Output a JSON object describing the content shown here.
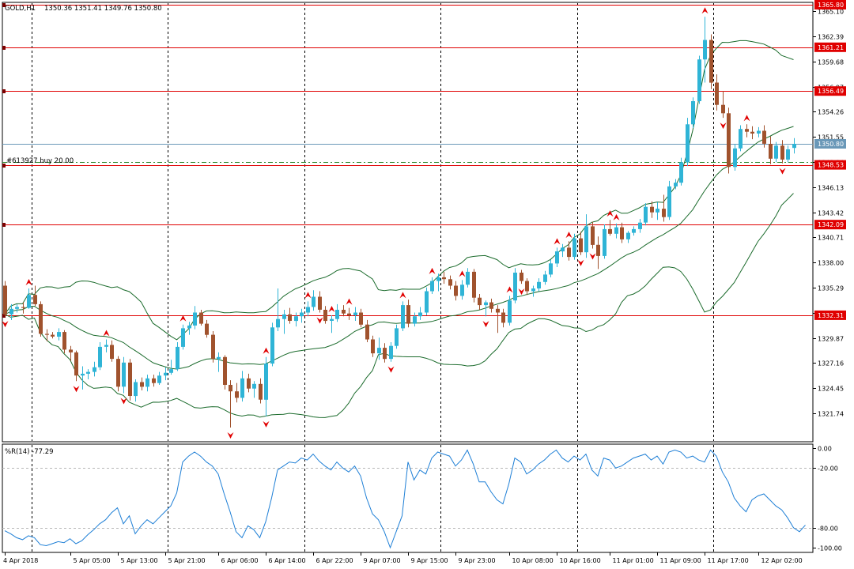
{
  "chart_title": "GOLD,H1",
  "ohlc_header": "1350.36 1351.41 1349.76 1350.80",
  "position_label": "#613927 buy 20.00",
  "indicator_label": "%R(14) -77.29",
  "colors": {
    "bull": "#2fb4d6",
    "bear": "#a0522d",
    "level_line": "#e00000",
    "band": "#1b6b2c",
    "bid_line": "#6a98b8",
    "wpr_line": "#1e7fd6",
    "fractal": "#e00000"
  },
  "price_axis": {
    "min": 1319.6,
    "max": 1365.8,
    "ticks": [
      {
        "label": "1365.10",
        "value": 1365.1
      },
      {
        "label": "1362.39",
        "value": 1362.39
      },
      {
        "label": "1359.68",
        "value": 1359.68
      },
      {
        "label": "1356.97",
        "value": 1356.97
      },
      {
        "label": "1354.26",
        "value": 1354.26
      },
      {
        "label": "1351.55",
        "value": 1351.55
      },
      {
        "label": "1348.84",
        "value": 1348.84
      },
      {
        "label": "1346.13",
        "value": 1346.13
      },
      {
        "label": "1343.42",
        "value": 1343.42
      },
      {
        "label": "1340.71",
        "value": 1340.71
      },
      {
        "label": "1338.00",
        "value": 1338.0
      },
      {
        "label": "1335.29",
        "value": 1335.29
      },
      {
        "label": "1332.58",
        "value": 1332.58
      },
      {
        "label": "1329.87",
        "value": 1329.87
      },
      {
        "label": "1327.16",
        "value": 1327.16
      },
      {
        "label": "1324.45",
        "value": 1324.45
      },
      {
        "label": "1321.74",
        "value": 1321.74
      }
    ]
  },
  "horizontal_levels": [
    {
      "label": "1365.80",
      "value": 1365.8
    },
    {
      "label": "1361.21",
      "value": 1361.21
    },
    {
      "label": "1356.49",
      "value": 1356.49
    },
    {
      "label": "1348.53",
      "value": 1348.53
    },
    {
      "label": "1342.09",
      "value": 1342.09
    },
    {
      "label": "1332.31",
      "value": 1332.31
    }
  ],
  "bid": {
    "label": "1350.80",
    "value": 1350.8
  },
  "position_price": 1348.8,
  "wpr_axis": {
    "min": -100,
    "max": 0,
    "ticks": [
      {
        "label": "0.00",
        "value": 0
      },
      {
        "label": "-20.00",
        "value": -20
      },
      {
        "label": "-80.00",
        "value": -80
      },
      {
        "label": "-100.00",
        "value": -100
      }
    ]
  },
  "time_labels": [
    {
      "label": "4 Apr 2018",
      "bar": 0
    },
    {
      "label": "5 Apr 05:00",
      "bar": 11
    },
    {
      "label": "5 Apr 13:00",
      "bar": 19
    },
    {
      "label": "5 Apr 21:00",
      "bar": 27
    },
    {
      "label": "6 Apr 06:00",
      "bar": 36
    },
    {
      "label": "6 Apr 14:00",
      "bar": 44
    },
    {
      "label": "6 Apr 22:00",
      "bar": 52
    },
    {
      "label": "9 Apr 07:00",
      "bar": 60
    },
    {
      "label": "9 Apr 15:00",
      "bar": 68
    },
    {
      "label": "9 Apr 23:00",
      "bar": 76
    },
    {
      "label": "10 Apr 08:00",
      "bar": 85
    },
    {
      "label": "10 Apr 16:00",
      "bar": 93
    },
    {
      "label": "11 Apr 01:00",
      "bar": 102
    },
    {
      "label": "11 Apr 09:00",
      "bar": 110
    },
    {
      "label": "11 Apr 17:00",
      "bar": 118
    },
    {
      "label": "12 Apr 02:00",
      "bar": 127
    }
  ],
  "period_separators": [
    4.5,
    27.5,
    50.5,
    73.5,
    96.5,
    119.5
  ],
  "chart_data": {
    "type": "candlestick",
    "symbol": "GOLD",
    "timeframe": "H1",
    "bars": [
      {
        "o": 1335.5,
        "h": 1336.0,
        "l": 1332.2,
        "c": 1332.4
      },
      {
        "o": 1332.4,
        "h": 1333.5,
        "l": 1331.8,
        "c": 1333.0
      },
      {
        "o": 1333.0,
        "h": 1333.5,
        "l": 1332.6,
        "c": 1333.2
      },
      {
        "o": 1333.2,
        "h": 1333.7,
        "l": 1332.5,
        "c": 1333.1
      },
      {
        "o": 1333.1,
        "h": 1335.2,
        "l": 1333.0,
        "c": 1334.5
      },
      {
        "o": 1334.5,
        "h": 1335.5,
        "l": 1333.3,
        "c": 1333.5
      },
      {
        "o": 1333.5,
        "h": 1333.8,
        "l": 1330.0,
        "c": 1330.3
      },
      {
        "o": 1330.3,
        "h": 1330.8,
        "l": 1329.5,
        "c": 1330.2
      },
      {
        "o": 1330.2,
        "h": 1330.5,
        "l": 1329.8,
        "c": 1330.0
      },
      {
        "o": 1330.0,
        "h": 1330.9,
        "l": 1329.6,
        "c": 1330.5
      },
      {
        "o": 1330.5,
        "h": 1330.7,
        "l": 1328.2,
        "c": 1328.6
      },
      {
        "o": 1328.6,
        "h": 1329.0,
        "l": 1327.4,
        "c": 1328.3
      },
      {
        "o": 1328.3,
        "h": 1328.5,
        "l": 1325.2,
        "c": 1325.8
      },
      {
        "o": 1325.8,
        "h": 1326.8,
        "l": 1324.3,
        "c": 1326.0
      },
      {
        "o": 1326.0,
        "h": 1326.5,
        "l": 1325.4,
        "c": 1326.2
      },
      {
        "o": 1326.2,
        "h": 1327.3,
        "l": 1325.7,
        "c": 1326.7
      },
      {
        "o": 1326.7,
        "h": 1329.4,
        "l": 1326.4,
        "c": 1328.9
      },
      {
        "o": 1328.9,
        "h": 1329.7,
        "l": 1328.3,
        "c": 1329.1
      },
      {
        "o": 1329.1,
        "h": 1329.6,
        "l": 1327.3,
        "c": 1327.6
      },
      {
        "o": 1327.6,
        "h": 1327.9,
        "l": 1324.1,
        "c": 1324.6
      },
      {
        "o": 1324.6,
        "h": 1327.8,
        "l": 1323.9,
        "c": 1327.2
      },
      {
        "o": 1327.2,
        "h": 1327.6,
        "l": 1323.1,
        "c": 1323.6
      },
      {
        "o": 1323.6,
        "h": 1325.4,
        "l": 1323.0,
        "c": 1325.1
      },
      {
        "o": 1325.1,
        "h": 1325.6,
        "l": 1324.2,
        "c": 1324.6
      },
      {
        "o": 1324.6,
        "h": 1325.9,
        "l": 1324.1,
        "c": 1325.5
      },
      {
        "o": 1325.5,
        "h": 1325.9,
        "l": 1324.6,
        "c": 1325.0
      },
      {
        "o": 1325.0,
        "h": 1326.2,
        "l": 1324.8,
        "c": 1325.8
      },
      {
        "o": 1325.8,
        "h": 1326.7,
        "l": 1325.3,
        "c": 1326.1
      },
      {
        "o": 1326.1,
        "h": 1327.5,
        "l": 1325.9,
        "c": 1326.5
      },
      {
        "o": 1326.5,
        "h": 1329.4,
        "l": 1326.3,
        "c": 1328.9
      },
      {
        "o": 1328.9,
        "h": 1331.3,
        "l": 1328.6,
        "c": 1330.9
      },
      {
        "o": 1330.9,
        "h": 1331.6,
        "l": 1330.2,
        "c": 1331.2
      },
      {
        "o": 1331.2,
        "h": 1333.3,
        "l": 1330.8,
        "c": 1332.6
      },
      {
        "o": 1332.6,
        "h": 1332.9,
        "l": 1331.2,
        "c": 1331.4
      },
      {
        "o": 1331.4,
        "h": 1331.8,
        "l": 1329.9,
        "c": 1330.2
      },
      {
        "o": 1330.2,
        "h": 1330.6,
        "l": 1327.2,
        "c": 1327.6
      },
      {
        "o": 1327.6,
        "h": 1328.3,
        "l": 1326.2,
        "c": 1327.8
      },
      {
        "o": 1327.8,
        "h": 1328.0,
        "l": 1324.3,
        "c": 1324.8
      },
      {
        "o": 1324.8,
        "h": 1325.3,
        "l": 1320.2,
        "c": 1324.1
      },
      {
        "o": 1324.1,
        "h": 1325.0,
        "l": 1322.9,
        "c": 1323.4
      },
      {
        "o": 1323.4,
        "h": 1326.3,
        "l": 1323.0,
        "c": 1325.5
      },
      {
        "o": 1325.5,
        "h": 1326.0,
        "l": 1324.0,
        "c": 1324.4
      },
      {
        "o": 1324.4,
        "h": 1325.2,
        "l": 1323.4,
        "c": 1324.9
      },
      {
        "o": 1324.9,
        "h": 1325.5,
        "l": 1322.8,
        "c": 1323.2
      },
      {
        "o": 1323.2,
        "h": 1327.8,
        "l": 1321.4,
        "c": 1327.1
      },
      {
        "o": 1327.1,
        "h": 1331.5,
        "l": 1326.8,
        "c": 1331.0
      },
      {
        "o": 1331.0,
        "h": 1335.2,
        "l": 1330.6,
        "c": 1331.9
      },
      {
        "o": 1331.9,
        "h": 1332.9,
        "l": 1330.3,
        "c": 1332.4
      },
      {
        "o": 1332.4,
        "h": 1333.1,
        "l": 1331.4,
        "c": 1331.7
      },
      {
        "o": 1331.7,
        "h": 1332.6,
        "l": 1331.1,
        "c": 1332.2
      },
      {
        "o": 1332.2,
        "h": 1333.0,
        "l": 1331.5,
        "c": 1332.6
      },
      {
        "o": 1332.6,
        "h": 1333.8,
        "l": 1332.2,
        "c": 1333.2
      },
      {
        "o": 1333.2,
        "h": 1335.0,
        "l": 1332.8,
        "c": 1334.3
      },
      {
        "o": 1334.3,
        "h": 1334.9,
        "l": 1332.6,
        "c": 1332.9
      },
      {
        "o": 1332.9,
        "h": 1333.3,
        "l": 1331.4,
        "c": 1331.7
      },
      {
        "o": 1331.7,
        "h": 1332.3,
        "l": 1330.4,
        "c": 1331.9
      },
      {
        "o": 1331.9,
        "h": 1333.5,
        "l": 1331.6,
        "c": 1332.9
      },
      {
        "o": 1332.9,
        "h": 1333.4,
        "l": 1332.2,
        "c": 1332.5
      },
      {
        "o": 1332.5,
        "h": 1333.1,
        "l": 1331.8,
        "c": 1332.3
      },
      {
        "o": 1332.3,
        "h": 1333.2,
        "l": 1331.7,
        "c": 1332.6
      },
      {
        "o": 1332.6,
        "h": 1333.0,
        "l": 1331.0,
        "c": 1331.3
      },
      {
        "o": 1331.3,
        "h": 1331.8,
        "l": 1329.4,
        "c": 1329.7
      },
      {
        "o": 1329.7,
        "h": 1330.1,
        "l": 1327.8,
        "c": 1328.2
      },
      {
        "o": 1328.2,
        "h": 1329.9,
        "l": 1327.5,
        "c": 1328.8
      },
      {
        "o": 1328.8,
        "h": 1329.3,
        "l": 1327.2,
        "c": 1327.6
      },
      {
        "o": 1327.6,
        "h": 1329.4,
        "l": 1327.3,
        "c": 1329.0
      },
      {
        "o": 1329.0,
        "h": 1331.3,
        "l": 1328.7,
        "c": 1330.9
      },
      {
        "o": 1330.9,
        "h": 1333.8,
        "l": 1330.6,
        "c": 1333.4
      },
      {
        "o": 1333.4,
        "h": 1334.0,
        "l": 1331.0,
        "c": 1331.4
      },
      {
        "o": 1331.4,
        "h": 1332.6,
        "l": 1331.1,
        "c": 1332.2
      },
      {
        "o": 1332.2,
        "h": 1333.2,
        "l": 1331.8,
        "c": 1332.6
      },
      {
        "o": 1332.6,
        "h": 1335.3,
        "l": 1332.3,
        "c": 1334.9
      },
      {
        "o": 1334.9,
        "h": 1336.4,
        "l": 1334.6,
        "c": 1336.0
      },
      {
        "o": 1336.0,
        "h": 1336.8,
        "l": 1334.9,
        "c": 1336.4
      },
      {
        "o": 1336.4,
        "h": 1337.0,
        "l": 1335.7,
        "c": 1336.2
      },
      {
        "o": 1336.2,
        "h": 1336.6,
        "l": 1335.1,
        "c": 1335.5
      },
      {
        "o": 1335.5,
        "h": 1336.0,
        "l": 1333.9,
        "c": 1334.4
      },
      {
        "o": 1334.4,
        "h": 1336.1,
        "l": 1334.0,
        "c": 1335.6
      },
      {
        "o": 1335.6,
        "h": 1337.4,
        "l": 1335.3,
        "c": 1337.0
      },
      {
        "o": 1337.0,
        "h": 1337.3,
        "l": 1333.7,
        "c": 1334.2
      },
      {
        "o": 1334.2,
        "h": 1334.6,
        "l": 1332.9,
        "c": 1333.4
      },
      {
        "o": 1333.4,
        "h": 1333.9,
        "l": 1332.2,
        "c": 1333.7
      },
      {
        "o": 1333.7,
        "h": 1334.1,
        "l": 1332.6,
        "c": 1333.0
      },
      {
        "o": 1333.0,
        "h": 1333.4,
        "l": 1330.4,
        "c": 1332.6
      },
      {
        "o": 1332.6,
        "h": 1333.0,
        "l": 1331.0,
        "c": 1331.5
      },
      {
        "o": 1331.5,
        "h": 1334.4,
        "l": 1331.2,
        "c": 1333.9
      },
      {
        "o": 1333.9,
        "h": 1337.4,
        "l": 1333.6,
        "c": 1336.9
      },
      {
        "o": 1336.9,
        "h": 1337.2,
        "l": 1335.7,
        "c": 1336.0
      },
      {
        "o": 1336.0,
        "h": 1336.3,
        "l": 1334.5,
        "c": 1334.9
      },
      {
        "o": 1334.9,
        "h": 1335.5,
        "l": 1334.3,
        "c": 1335.2
      },
      {
        "o": 1335.2,
        "h": 1336.3,
        "l": 1334.9,
        "c": 1335.9
      },
      {
        "o": 1335.9,
        "h": 1337.1,
        "l": 1335.6,
        "c": 1336.7
      },
      {
        "o": 1336.7,
        "h": 1338.3,
        "l": 1336.4,
        "c": 1337.9
      },
      {
        "o": 1337.9,
        "h": 1339.6,
        "l": 1337.5,
        "c": 1339.2
      },
      {
        "o": 1339.2,
        "h": 1340.0,
        "l": 1338.6,
        "c": 1339.6
      },
      {
        "o": 1339.6,
        "h": 1340.3,
        "l": 1338.2,
        "c": 1338.6
      },
      {
        "o": 1338.6,
        "h": 1341.1,
        "l": 1338.3,
        "c": 1340.6
      },
      {
        "o": 1340.6,
        "h": 1341.3,
        "l": 1338.8,
        "c": 1339.1
      },
      {
        "o": 1339.1,
        "h": 1343.2,
        "l": 1338.5,
        "c": 1341.9
      },
      {
        "o": 1341.9,
        "h": 1342.4,
        "l": 1339.5,
        "c": 1339.9
      },
      {
        "o": 1339.9,
        "h": 1340.8,
        "l": 1337.3,
        "c": 1338.7
      },
      {
        "o": 1338.7,
        "h": 1342.1,
        "l": 1338.4,
        "c": 1341.6
      },
      {
        "o": 1341.6,
        "h": 1342.6,
        "l": 1340.9,
        "c": 1341.1
      },
      {
        "o": 1341.1,
        "h": 1342.2,
        "l": 1340.6,
        "c": 1341.8
      },
      {
        "o": 1341.8,
        "h": 1342.3,
        "l": 1340.1,
        "c": 1340.5
      },
      {
        "o": 1340.5,
        "h": 1341.4,
        "l": 1340.1,
        "c": 1341.2
      },
      {
        "o": 1341.2,
        "h": 1341.9,
        "l": 1340.9,
        "c": 1341.6
      },
      {
        "o": 1341.6,
        "h": 1342.7,
        "l": 1341.2,
        "c": 1342.3
      },
      {
        "o": 1342.3,
        "h": 1344.4,
        "l": 1342.0,
        "c": 1344.0
      },
      {
        "o": 1344.0,
        "h": 1344.6,
        "l": 1342.8,
        "c": 1343.4
      },
      {
        "o": 1343.4,
        "h": 1344.5,
        "l": 1342.6,
        "c": 1343.8
      },
      {
        "o": 1343.8,
        "h": 1345.3,
        "l": 1342.4,
        "c": 1342.9
      },
      {
        "o": 1342.9,
        "h": 1346.8,
        "l": 1342.6,
        "c": 1346.2
      },
      {
        "o": 1346.2,
        "h": 1347.0,
        "l": 1345.9,
        "c": 1346.6
      },
      {
        "o": 1346.6,
        "h": 1349.3,
        "l": 1346.3,
        "c": 1348.8
      },
      {
        "o": 1348.8,
        "h": 1353.6,
        "l": 1348.4,
        "c": 1352.9
      },
      {
        "o": 1352.9,
        "h": 1355.8,
        "l": 1352.5,
        "c": 1355.4
      },
      {
        "o": 1355.4,
        "h": 1360.3,
        "l": 1355.1,
        "c": 1359.9
      },
      {
        "o": 1359.9,
        "h": 1364.5,
        "l": 1357.4,
        "c": 1362.0
      },
      {
        "o": 1362.0,
        "h": 1362.6,
        "l": 1356.7,
        "c": 1357.4
      },
      {
        "o": 1357.4,
        "h": 1358.3,
        "l": 1354.4,
        "c": 1355.0
      },
      {
        "o": 1355.0,
        "h": 1356.5,
        "l": 1353.6,
        "c": 1354.1
      },
      {
        "o": 1354.1,
        "h": 1354.7,
        "l": 1347.6,
        "c": 1348.3
      },
      {
        "o": 1348.3,
        "h": 1350.8,
        "l": 1347.9,
        "c": 1350.3
      },
      {
        "o": 1350.3,
        "h": 1352.8,
        "l": 1350.0,
        "c": 1352.4
      },
      {
        "o": 1352.4,
        "h": 1352.9,
        "l": 1351.5,
        "c": 1352.1
      },
      {
        "o": 1352.1,
        "h": 1352.7,
        "l": 1351.3,
        "c": 1351.9
      },
      {
        "o": 1351.9,
        "h": 1352.6,
        "l": 1351.5,
        "c": 1352.2
      },
      {
        "o": 1352.2,
        "h": 1352.8,
        "l": 1350.4,
        "c": 1350.8
      },
      {
        "o": 1350.8,
        "h": 1351.6,
        "l": 1348.6,
        "c": 1349.2
      },
      {
        "o": 1349.2,
        "h": 1351.0,
        "l": 1348.8,
        "c": 1350.6
      },
      {
        "o": 1350.6,
        "h": 1351.2,
        "l": 1348.7,
        "c": 1349.1
      },
      {
        "o": 1349.1,
        "h": 1350.6,
        "l": 1348.8,
        "c": 1350.2
      },
      {
        "o": 1350.36,
        "h": 1351.41,
        "l": 1349.76,
        "c": 1350.8
      }
    ],
    "fractals_up": [
      4,
      17,
      30,
      44,
      51,
      55,
      58,
      67,
      72,
      77,
      85,
      93,
      95,
      102,
      103,
      118,
      125
    ],
    "fractals_down": [
      0,
      12,
      20,
      38,
      44,
      53,
      65,
      81,
      87,
      97,
      99,
      121,
      131
    ],
    "indicator": {
      "name": "%R(14)",
      "last_value": -77.29,
      "levels": [
        -20,
        -80
      ],
      "values": [
        -83.0,
        -86.0,
        -90.0,
        -92.0,
        -88.0,
        -90.0,
        -97.0,
        -98.0,
        -96.0,
        -94.0,
        -95.0,
        -91.0,
        -96.0,
        -93.0,
        -87.0,
        -82.0,
        -76.0,
        -72.0,
        -65.0,
        -60.0,
        -76.0,
        -68.0,
        -86.0,
        -78.0,
        -72.0,
        -76.0,
        -70.0,
        -64.0,
        -58.0,
        -45.0,
        -14.0,
        -8.0,
        -4.0,
        -8.0,
        -14.0,
        -18.0,
        -26.0,
        -46.0,
        -64.0,
        -84.0,
        -90.0,
        -78.0,
        -82.0,
        -90.0,
        -74.0,
        -50.0,
        -22.0,
        -18.0,
        -14.0,
        -15.0,
        -10.0,
        -12.0,
        -6.0,
        -13.0,
        -18.0,
        -22.0,
        -14.0,
        -20.0,
        -24.0,
        -18.0,
        -28.0,
        -50.0,
        -66.0,
        -72.0,
        -84.0,
        -100.0,
        -84.0,
        -68.0,
        -14.0,
        -32.0,
        -22.0,
        -26.0,
        -10.0,
        -4.0,
        -6.0,
        -8.0,
        -18.0,
        -12.0,
        -2.0,
        -16.0,
        -34.0,
        -34.0,
        -44.0,
        -52.0,
        -56.0,
        -36.0,
        -10.0,
        -14.0,
        -26.0,
        -22.0,
        -16.0,
        -12.0,
        -6.0,
        -2.0,
        -10.0,
        -14.0,
        -8.0,
        -12.0,
        -6.0,
        -22.0,
        -28.0,
        -10.0,
        -12.0,
        -20.0,
        -18.0,
        -14.0,
        -10.0,
        -8.0,
        -6.0,
        -12.0,
        -8.0,
        -16.0,
        -4.0,
        -2.0,
        -4.0,
        -10.0,
        -8.0,
        -12.0,
        -14.0,
        -2.0,
        -8.0,
        -24.0,
        -34.0,
        -50.0,
        -58.0,
        -64.0,
        -52.0,
        -48.0,
        -46.0,
        -52.0,
        -58.0,
        -62.0,
        -70.0,
        -80.0,
        -84.0,
        -77.29
      ]
    }
  }
}
